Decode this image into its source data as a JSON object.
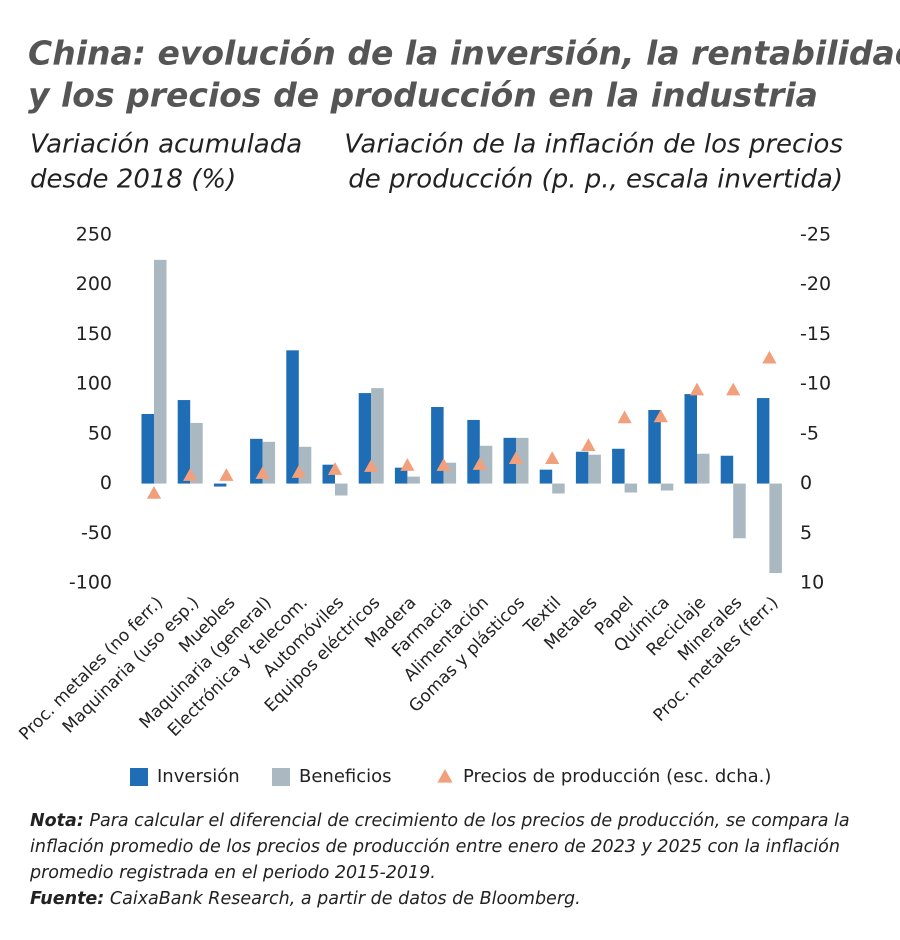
{
  "chart_data": {
    "type": "bar_triangle_combo",
    "title": [
      "China: evolución de la inversión, la rentabilidad",
      "y los precios de producción en la industria"
    ],
    "y_label": [
      "Variación acumulada",
      "desde 2018 (%)"
    ],
    "y2_label": [
      "Variación de la inflación de los precios",
      "de producción  (p. p., escala invertida)"
    ],
    "categories": [
      "Proc. metales (no ferr.)",
      "Maquinaria (uso esp.)",
      "Muebles",
      "Maquinaria (general)",
      "Electrónica y telecom.",
      "Automóviles",
      "Equipos eléctricos",
      "Madera",
      "Farmacia",
      "Alimentación",
      "Gomas y plásticos",
      "Textil",
      "Metales",
      "Papel",
      "Química",
      "Reciclaje",
      "Minerales",
      "Proc. metales (ferr.)"
    ],
    "series": [
      {
        "name": "Inversión",
        "color": "#1f6db5",
        "kind": "bar",
        "values": [
          70,
          84,
          -3,
          45,
          134,
          19,
          91,
          16,
          77,
          64,
          46,
          14,
          32,
          35,
          74,
          90,
          28,
          86
        ]
      },
      {
        "name": "Beneficios",
        "color": "#aab8c2",
        "kind": "bar",
        "values": [
          225,
          61,
          0,
          42,
          37,
          -12,
          96,
          7,
          21,
          38,
          46,
          -10,
          29,
          -9,
          -7,
          30,
          -55,
          -90
        ]
      },
      {
        "name": "Precios de producción (esc. dcha.)",
        "color": "#f2a07b",
        "kind": "triangle",
        "axis": "y2",
        "values": [
          1,
          -0.8,
          -0.8,
          -1,
          -1.1,
          -1.4,
          -1.7,
          -1.8,
          -1.8,
          -1.9,
          -2.5,
          -2.5,
          -3.8,
          -6.6,
          -6.7,
          -9.4,
          -9.4,
          -12.6
        ]
      }
    ],
    "ylim": [
      -100,
      250
    ],
    "yticks": [
      -100,
      -50,
      0,
      50,
      100,
      150,
      200,
      250
    ],
    "y2lim": [
      10,
      -25
    ],
    "y2_inverted": true,
    "y2ticks": [
      10,
      5,
      0,
      -5,
      -10,
      -15,
      -20,
      -25
    ],
    "note_label": "Nota:",
    "note": "Para calcular el diferencial de crecimiento de los precios de producción, se compara la inflación promedio de los precios de producción entre enero de 2023 y 2025 con la inflación promedio registrada en el periodo 2015-2019.",
    "source_label": "Fuente:",
    "source": "CaixaBank Research, a partir de datos de Bloomberg."
  }
}
